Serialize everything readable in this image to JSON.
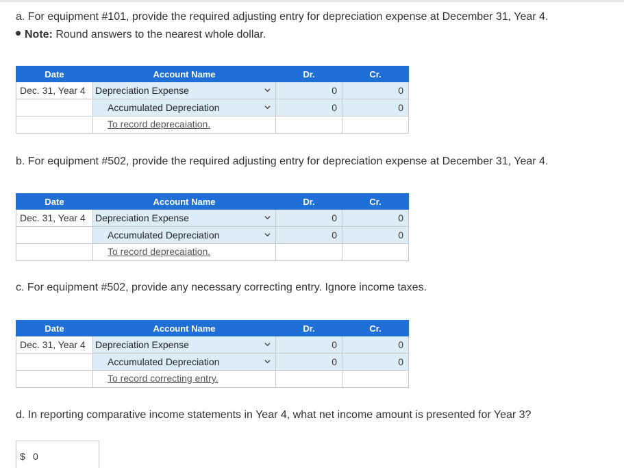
{
  "questions": {
    "a": "a. For equipment #101, provide the required adjusting entry for depreciation expense at December 31, Year 4.",
    "note_label": "Note:",
    "note_text": " Round answers to the nearest whole dollar.",
    "b": "b. For equipment #502, provide the required adjusting entry for depreciation expense at December 31, Year 4.",
    "c": "c. For equipment #502, provide any necessary correcting entry. Ignore income taxes.",
    "d": "d. In reporting comparative income statements in Year 4, what net income amount is presented for Year 3?"
  },
  "table_headers": {
    "date": "Date",
    "account": "Account Name",
    "dr": "Dr.",
    "cr": "Cr."
  },
  "tables": [
    {
      "date": "Dec. 31, Year 4",
      "row1_account": "Depreciation Expense",
      "row1_dr": "0",
      "row1_cr": "0",
      "row2_account": "Accumulated Depreciation",
      "row2_dr": "0",
      "row2_cr": "0",
      "memo": "To record deprecaiation."
    },
    {
      "date": "Dec. 31, Year 4",
      "row1_account": "Depreciation Expense",
      "row1_dr": "0",
      "row1_cr": "0",
      "row2_account": "Accumulated Depreciation",
      "row2_dr": "0",
      "row2_cr": "0",
      "memo": "To record deprecaiation."
    },
    {
      "date": "Dec. 31, Year 4",
      "row1_account": "Depreciation Expense",
      "row1_dr": "0",
      "row1_cr": "0",
      "row2_account": "Accumulated Depreciation",
      "row2_dr": "0",
      "row2_cr": "0",
      "memo": "To record correcting entry."
    }
  ],
  "answer_d": {
    "currency": "$",
    "value": "0"
  },
  "icons": {
    "dropdown": "chevron-down-icon"
  },
  "colors": {
    "header_bg": "#1f6fd6",
    "input_bg": "#dcedf8"
  }
}
